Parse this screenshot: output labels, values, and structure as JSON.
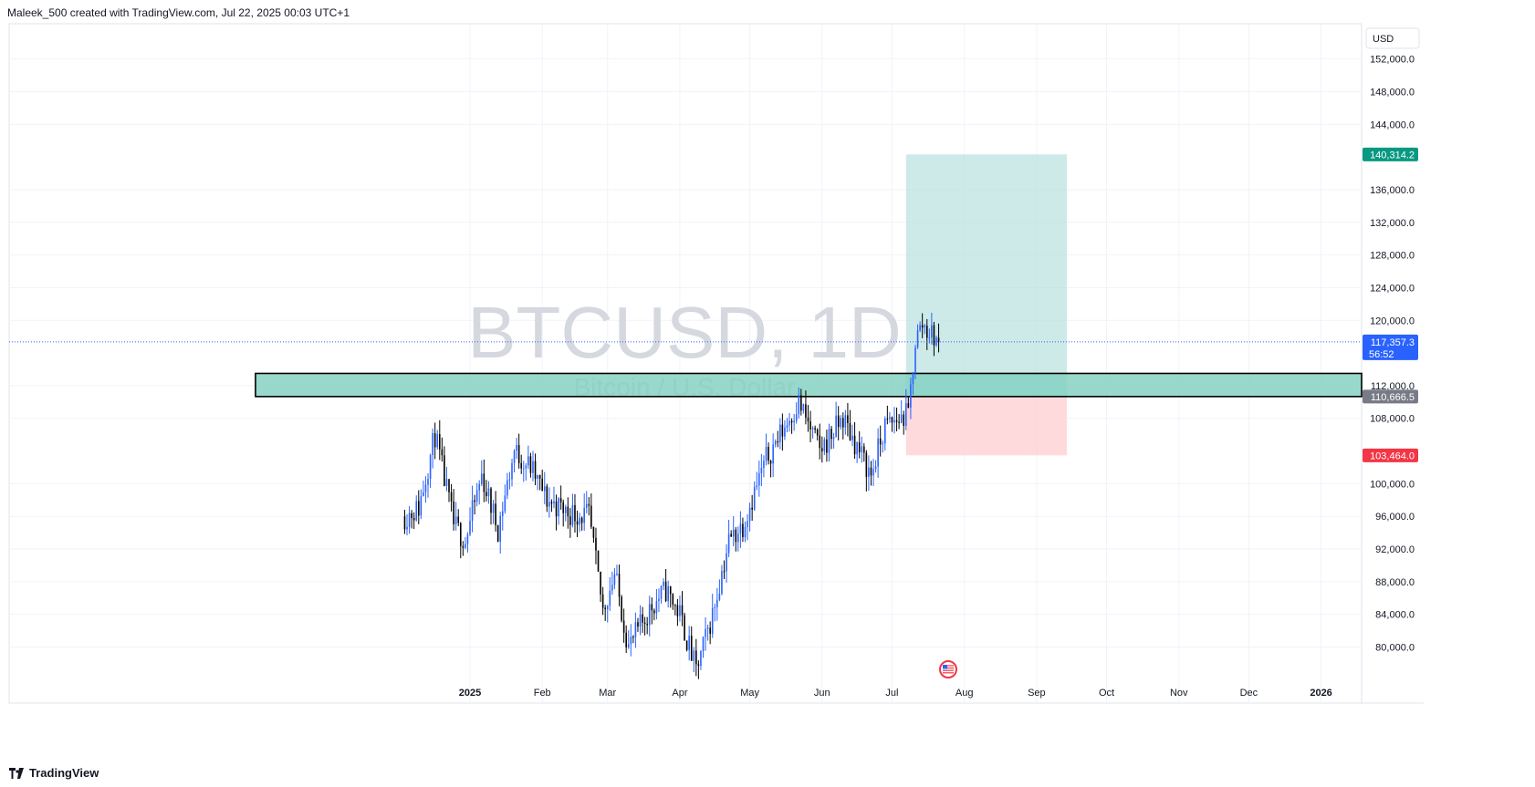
{
  "header": {
    "attribution": "Maleek_500 created with TradingView.com, Jul 22, 2025 00:03 UTC+1"
  },
  "footer": {
    "brand": "TradingView",
    "logo_icon": "tradingview-logo-icon"
  },
  "watermark": {
    "symbol": "BTCUSD, 1D",
    "description": "Bitcoin / U.S. Dollar"
  },
  "colors": {
    "up": "#2962ff",
    "down": "#000000",
    "grid": "#f0f3fa",
    "target": "#b2dfdb",
    "stop": "#ffcdd2",
    "zone": "#7fcfbf",
    "target_label": "#089981",
    "stop_label": "#f23645",
    "price_label": "#2962ff",
    "entry_label": "#787b86"
  },
  "chart_data": {
    "type": "candlestick",
    "currency": "USD",
    "y_ticks": [
      "152,000.0",
      "148,000.0",
      "144,000.0",
      "136,000.0",
      "132,000.0",
      "128,000.0",
      "124,000.0",
      "120,000.0",
      "112,000.0",
      "108,000.0",
      "100,000.0",
      "96,000.0",
      "92,000.0",
      "88,000.0",
      "84,000.0",
      "80,000.0"
    ],
    "x_ticks": [
      "2025",
      "Feb",
      "Mar",
      "Apr",
      "May",
      "Jun",
      "Jul",
      "Aug",
      "Sep",
      "Oct",
      "Nov",
      "Dec",
      "2026"
    ],
    "ylim": [
      75000,
      156000
    ],
    "series_start": "2024-12-04",
    "series_end": "2025-07-21",
    "price_path": [
      [
        "2024-12-04",
        96000
      ],
      [
        "2024-12-10",
        97000
      ],
      [
        "2024-12-17",
        106000
      ],
      [
        "2024-12-25",
        95000
      ],
      [
        "2024-12-30",
        93000
      ],
      [
        "2025-01-06",
        101000
      ],
      [
        "2025-01-13",
        94500
      ],
      [
        "2025-01-20",
        104000
      ],
      [
        "2025-01-27",
        102000
      ],
      [
        "2025-02-03",
        98000
      ],
      [
        "2025-02-12",
        96500
      ],
      [
        "2025-02-21",
        96000
      ],
      [
        "2025-02-27",
        84500
      ],
      [
        "2025-03-04",
        89000
      ],
      [
        "2025-03-10",
        80000
      ],
      [
        "2025-03-20",
        85000
      ],
      [
        "2025-03-26",
        87000
      ],
      [
        "2025-04-01",
        84000
      ],
      [
        "2025-04-08",
        77000
      ],
      [
        "2025-04-15",
        84000
      ],
      [
        "2025-04-22",
        93000
      ],
      [
        "2025-04-28",
        95000
      ],
      [
        "2025-05-08",
        103000
      ],
      [
        "2025-05-22",
        110000
      ],
      [
        "2025-05-31",
        104000
      ],
      [
        "2025-06-10",
        108000
      ],
      [
        "2025-06-22",
        101000
      ],
      [
        "2025-06-28",
        107000
      ],
      [
        "2025-07-08",
        108500
      ],
      [
        "2025-07-11",
        117500
      ],
      [
        "2025-07-14",
        119500
      ],
      [
        "2025-07-21",
        117357
      ]
    ],
    "position": {
      "target_label": "140,314.2",
      "target": 140314.2,
      "current_label": "117,357.3",
      "current": 117357.3,
      "countdown": "56:52",
      "entry_label": "110,666.5",
      "entry": 110666.5,
      "stop_label": "103,464.0",
      "stop": 103464.0,
      "start": "2025-07-07",
      "end": "2025-09-14"
    },
    "zone": {
      "low": 110666.5,
      "high": 113500,
      "start": "2024-10-01"
    }
  }
}
